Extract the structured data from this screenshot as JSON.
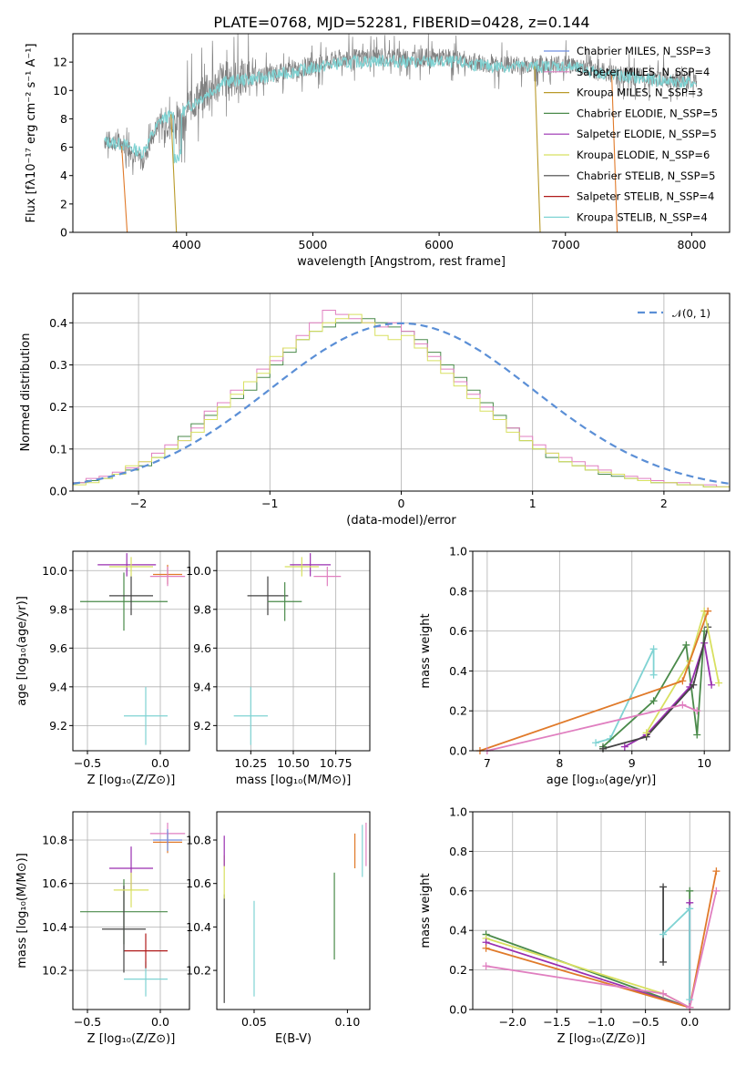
{
  "figure": {
    "title": "PLATE=0768, MJD=52281, FIBERID=0428, z=0.144",
    "colors": [
      "#6f8fe0",
      "#e07fc0",
      "#b99a2a",
      "#4a8a4a",
      "#9a2fb0",
      "#d8e060",
      "#444444",
      "#b01a1a",
      "#7fd3d3",
      "#e07a2a",
      "#808080"
    ]
  },
  "chart_data": [
    {
      "type": "line",
      "panel": "spectrum",
      "xlabel": "wavelength [Angstrom, rest frame]",
      "ylabel": "Flux [fλ10⁻¹⁷ erg cm⁻² s⁻¹ A⁻¹]",
      "xlim": [
        3100,
        8300
      ],
      "ylim": [
        0,
        14
      ],
      "xticks": [
        4000,
        5000,
        6000,
        7000,
        8000
      ],
      "yticks": [
        0,
        2,
        4,
        6,
        8,
        10,
        12
      ],
      "legend": {
        "placement": "top-right",
        "entries": [
          {
            "text": "Chabrier MILES, N_SSP=3",
            "color": "#6f8fe0"
          },
          {
            "text": "Salpeter MILES, N_SSP=4",
            "color": "#e07fc0"
          },
          {
            "text": "Kroupa MILES, N_SSP=3",
            "color": "#b99a2a"
          },
          {
            "text": "Chabrier ELODIE, N_SSP=5",
            "color": "#4a8a4a"
          },
          {
            "text": "Salpeter ELODIE, N_SSP=5",
            "color": "#9a2fb0"
          },
          {
            "text": "Kroupa ELODIE, N_SSP=6",
            "color": "#d8e060"
          },
          {
            "text": "Chabrier STELIB, N_SSP=5",
            "color": "#444444"
          },
          {
            "text": "Salpeter STELIB, N_SSP=4",
            "color": "#b01a1a"
          },
          {
            "text": "Kroupa STELIB, N_SSP=4",
            "color": "#7fd3d3"
          }
        ]
      },
      "data_spectrum": {
        "color": "#808080",
        "points": [
          [
            3350,
            6.5
          ],
          [
            3500,
            6.3
          ],
          [
            3650,
            5.0
          ],
          [
            3800,
            8.2
          ],
          [
            3950,
            8.6
          ],
          [
            4100,
            9.5
          ],
          [
            4300,
            10.8
          ],
          [
            4600,
            11.0
          ],
          [
            4900,
            11.5
          ],
          [
            5200,
            12.2
          ],
          [
            5500,
            12.4
          ],
          [
            5800,
            12.3
          ],
          [
            6100,
            12.3
          ],
          [
            6400,
            11.8
          ],
          [
            6700,
            11.8
          ],
          [
            7000,
            11.9
          ],
          [
            7300,
            11.3
          ],
          [
            7600,
            10.9
          ],
          [
            7900,
            10.8
          ],
          [
            8040,
            10.6
          ]
        ]
      },
      "model_spectrum": {
        "color": "#7fd3d3",
        "points": [
          [
            3350,
            6.4
          ],
          [
            3500,
            6.2
          ],
          [
            3650,
            5.6
          ],
          [
            3800,
            8.0
          ],
          [
            3950,
            8.4
          ],
          [
            4100,
            9.4
          ],
          [
            4300,
            10.6
          ],
          [
            4600,
            10.9
          ],
          [
            4900,
            11.4
          ],
          [
            5200,
            11.9
          ],
          [
            5500,
            12.1
          ],
          [
            5800,
            12.0
          ],
          [
            6100,
            12.0
          ],
          [
            6400,
            11.7
          ],
          [
            6700,
            11.7
          ],
          [
            7000,
            11.7
          ],
          [
            7300,
            11.2
          ],
          [
            7600,
            10.8
          ],
          [
            7900,
            10.6
          ],
          [
            8040,
            10.5
          ]
        ]
      },
      "dropouts": [
        {
          "x": 3530,
          "color": "#e07a2a"
        },
        {
          "x": 3920,
          "color": "#b99a2a"
        },
        {
          "x": 6800,
          "color": "#b99a2a"
        },
        {
          "x": 7410,
          "color": "#e07a2a"
        }
      ]
    },
    {
      "type": "line",
      "panel": "residuals",
      "xlabel": "(data-model)/error",
      "ylabel": "Normed distribution",
      "xlim": [
        -2.5,
        2.5
      ],
      "ylim": [
        0,
        0.47
      ],
      "xticks": [
        -2,
        -1,
        0,
        1,
        2
      ],
      "yticks": [
        0.0,
        0.1,
        0.2,
        0.3,
        0.4
      ],
      "grid": true,
      "legend": {
        "placement": "top-right",
        "entries": [
          {
            "text": "𝒩(0, 1)",
            "color": "#5b8fd6"
          }
        ]
      },
      "bin_width": 0.1,
      "reference_curve": {
        "name": "𝒩(0, 1)",
        "mu": 0,
        "sigma": 1,
        "color": "#5b8fd6",
        "style": "dashed"
      },
      "histograms": [
        {
          "color": "#4a8a4a",
          "values": [
            0.02,
            0.025,
            0.03,
            0.04,
            0.05,
            0.06,
            0.08,
            0.1,
            0.13,
            0.16,
            0.18,
            0.2,
            0.22,
            0.24,
            0.27,
            0.3,
            0.33,
            0.36,
            0.38,
            0.39,
            0.4,
            0.4,
            0.41,
            0.4,
            0.39,
            0.38,
            0.36,
            0.33,
            0.3,
            0.27,
            0.24,
            0.21,
            0.18,
            0.15,
            0.12,
            0.1,
            0.08,
            0.07,
            0.06,
            0.05,
            0.04,
            0.035,
            0.03,
            0.025,
            0.02,
            0.02,
            0.015,
            0.015,
            0.01,
            0.01
          ]
        },
        {
          "color": "#e07fc0",
          "values": [
            0.02,
            0.03,
            0.035,
            0.045,
            0.055,
            0.07,
            0.09,
            0.11,
            0.12,
            0.15,
            0.19,
            0.21,
            0.24,
            0.26,
            0.29,
            0.31,
            0.34,
            0.37,
            0.4,
            0.43,
            0.42,
            0.41,
            0.4,
            0.39,
            0.4,
            0.38,
            0.35,
            0.32,
            0.29,
            0.26,
            0.23,
            0.2,
            0.17,
            0.15,
            0.13,
            0.11,
            0.09,
            0.08,
            0.07,
            0.06,
            0.05,
            0.04,
            0.035,
            0.03,
            0.025,
            0.02,
            0.02,
            0.015,
            0.015,
            0.01
          ]
        },
        {
          "color": "#d8e060",
          "values": [
            0.015,
            0.02,
            0.03,
            0.04,
            0.06,
            0.07,
            0.08,
            0.1,
            0.12,
            0.14,
            0.17,
            0.2,
            0.23,
            0.26,
            0.28,
            0.32,
            0.34,
            0.36,
            0.38,
            0.4,
            0.41,
            0.42,
            0.4,
            0.37,
            0.36,
            0.37,
            0.34,
            0.31,
            0.28,
            0.25,
            0.22,
            0.19,
            0.17,
            0.14,
            0.12,
            0.1,
            0.09,
            0.07,
            0.06,
            0.05,
            0.045,
            0.04,
            0.03,
            0.025,
            0.02,
            0.02,
            0.015,
            0.015,
            0.01,
            0.01
          ]
        }
      ]
    },
    {
      "type": "scatter",
      "panel": "age-vs-Z",
      "xlabel": "Z [log₁₀(Z/Z⊙)]",
      "ylabel": "age  [log₁₀(age/yr)]",
      "xlim": [
        -0.6,
        0.2
      ],
      "ylim": [
        9.07,
        10.1
      ],
      "xticks": [
        -0.5,
        0.0
      ],
      "yticks": [
        9.2,
        9.4,
        9.6,
        9.8,
        10.0
      ],
      "grid": true,
      "points": [
        {
          "x": -0.1,
          "y": 9.25,
          "xerr": 0.15,
          "yerr": 0.15,
          "color": "#7fd3d3"
        },
        {
          "x": -0.25,
          "y": 9.84,
          "xerr": 0.3,
          "yerr": 0.15,
          "color": "#4a8a4a"
        },
        {
          "x": -0.23,
          "y": 10.03,
          "xerr": 0.2,
          "yerr": 0.06,
          "color": "#9a2fb0"
        },
        {
          "x": -0.2,
          "y": 10.02,
          "xerr": 0.15,
          "yerr": 0.05,
          "color": "#d8e060"
        },
        {
          "x": -0.2,
          "y": 9.87,
          "xerr": 0.15,
          "yerr": 0.1,
          "color": "#444444"
        },
        {
          "x": 0.05,
          "y": 9.98,
          "xerr": 0.1,
          "yerr": 0.05,
          "color": "#e07a2a"
        },
        {
          "x": 0.05,
          "y": 9.97,
          "xerr": 0.12,
          "yerr": 0.05,
          "color": "#e07fc0"
        }
      ]
    },
    {
      "type": "scatter",
      "panel": "age-vs-mass",
      "xlabel": "mass [log₁₀(M/M⊙)]",
      "ylabel": "",
      "xlim": [
        10.05,
        10.95
      ],
      "ylim": [
        9.07,
        10.1
      ],
      "xticks": [
        10.25,
        10.5,
        10.75
      ],
      "xticklabels": [
        "10.25",
        "10.50",
        "10.75"
      ],
      "yticks": [
        9.2,
        9.4,
        9.6,
        9.8,
        10.0
      ],
      "grid": true,
      "points": [
        {
          "x": 10.25,
          "y": 9.25,
          "xerr": 0.1,
          "yerr": 0.15,
          "color": "#7fd3d3"
        },
        {
          "x": 10.35,
          "y": 9.87,
          "xerr": 0.12,
          "yerr": 0.1,
          "color": "#444444"
        },
        {
          "x": 10.45,
          "y": 9.84,
          "xerr": 0.1,
          "yerr": 0.1,
          "color": "#4a8a4a"
        },
        {
          "x": 10.6,
          "y": 10.03,
          "xerr": 0.12,
          "yerr": 0.06,
          "color": "#9a2fb0"
        },
        {
          "x": 10.7,
          "y": 9.97,
          "xerr": 0.08,
          "yerr": 0.05,
          "color": "#e07fc0"
        },
        {
          "x": 10.55,
          "y": 10.02,
          "xerr": 0.1,
          "yerr": 0.05,
          "color": "#d8e060"
        }
      ]
    },
    {
      "type": "line",
      "panel": "weight-vs-age",
      "xlabel": "age  [log₁₀(age/yr)]",
      "ylabel": "mass weight",
      "xlim": [
        6.8,
        10.35
      ],
      "ylim": [
        0,
        1
      ],
      "xticks": [
        7,
        8,
        9,
        10
      ],
      "yticks": [
        0.0,
        0.2,
        0.4,
        0.6,
        0.8,
        1.0
      ],
      "grid": true,
      "series": [
        {
          "color": "#7fd3d3",
          "points": [
            [
              8.5,
              0.04
            ],
            [
              8.7,
              0.06
            ],
            [
              9.3,
              0.51
            ],
            [
              9.3,
              0.38
            ]
          ]
        },
        {
          "color": "#4a8a4a",
          "points": [
            [
              8.6,
              0.02
            ],
            [
              9.3,
              0.25
            ],
            [
              9.75,
              0.53
            ],
            [
              9.9,
              0.08
            ],
            [
              10.0,
              0.6
            ]
          ]
        },
        {
          "color": "#9a2fb0",
          "points": [
            [
              8.9,
              0.02
            ],
            [
              9.2,
              0.08
            ],
            [
              9.8,
              0.32
            ],
            [
              10.0,
              0.54
            ],
            [
              10.1,
              0.33
            ]
          ]
        },
        {
          "color": "#444444",
          "points": [
            [
              8.6,
              0.01
            ],
            [
              9.2,
              0.07
            ],
            [
              9.85,
              0.33
            ],
            [
              10.05,
              0.62
            ]
          ]
        },
        {
          "color": "#d8e060",
          "points": [
            [
              9.2,
              0.09
            ],
            [
              9.8,
              0.45
            ],
            [
              10.0,
              0.7
            ],
            [
              10.2,
              0.34
            ]
          ]
        },
        {
          "color": "#e07a2a",
          "points": [
            [
              6.9,
              0.0
            ],
            [
              9.7,
              0.35
            ],
            [
              10.05,
              0.7
            ]
          ]
        },
        {
          "color": "#e07fc0",
          "points": [
            [
              7.0,
              0.0
            ],
            [
              9.7,
              0.23
            ],
            [
              9.9,
              0.2
            ]
          ]
        }
      ]
    },
    {
      "type": "scatter",
      "panel": "mass-vs-Z",
      "xlabel": "Z [log₁₀(Z/Z⊙)]",
      "ylabel": "mass [log₁₀(M/M⊙)]",
      "xlim": [
        -0.6,
        0.2
      ],
      "ylim": [
        10.02,
        10.93
      ],
      "xticks": [
        -0.5,
        0.0
      ],
      "yticks": [
        10.2,
        10.4,
        10.6,
        10.8
      ],
      "grid": true,
      "points": [
        {
          "x": -0.1,
          "y": 10.16,
          "xerr": 0.15,
          "yerr": 0.08,
          "color": "#7fd3d3"
        },
        {
          "x": -0.1,
          "y": 10.29,
          "xerr": 0.15,
          "yerr": 0.08,
          "color": "#b01a1a"
        },
        {
          "x": -0.25,
          "y": 10.47,
          "xerr": 0.3,
          "yerr": 0.15,
          "color": "#4a8a4a"
        },
        {
          "x": -0.25,
          "y": 10.39,
          "xerr": 0.15,
          "yerr": 0.2,
          "color": "#444444"
        },
        {
          "x": -0.2,
          "y": 10.67,
          "xerr": 0.15,
          "yerr": 0.1,
          "color": "#9a2fb0"
        },
        {
          "x": -0.2,
          "y": 10.57,
          "xerr": 0.12,
          "yerr": 0.08,
          "color": "#d8e060"
        },
        {
          "x": 0.05,
          "y": 10.79,
          "xerr": 0.1,
          "yerr": 0.05,
          "color": "#e07a2a"
        },
        {
          "x": 0.05,
          "y": 10.83,
          "xerr": 0.12,
          "yerr": 0.05,
          "color": "#e07fc0"
        },
        {
          "x": 0.05,
          "y": 10.8,
          "xerr": 0.1,
          "yerr": 0.05,
          "color": "#6f8fe0"
        }
      ]
    },
    {
      "type": "scatter",
      "panel": "mass-vs-EBV",
      "xlabel": "E(B-V)",
      "ylabel": "",
      "xlim": [
        0.03,
        0.112
      ],
      "ylim": [
        10.02,
        10.93
      ],
      "xticks": [
        0.05,
        0.1
      ],
      "xticklabels": [
        "0.05",
        "0.10"
      ],
      "yticks": [
        10.2,
        10.4,
        10.6,
        10.8
      ],
      "points": [
        {
          "x": 0.034,
          "y": 10.3,
          "yerr": 0.25,
          "color": "#444444"
        },
        {
          "x": 0.034,
          "y": 10.63,
          "yerr": 0.1,
          "color": "#d8e060"
        },
        {
          "x": 0.034,
          "y": 10.75,
          "yerr": 0.07,
          "color": "#9a2fb0"
        },
        {
          "x": 0.05,
          "y": 10.3,
          "yerr": 0.22,
          "color": "#7fd3d3"
        },
        {
          "x": 0.093,
          "y": 10.45,
          "yerr": 0.2,
          "color": "#4a8a4a"
        },
        {
          "x": 0.104,
          "y": 10.75,
          "yerr": 0.08,
          "color": "#e07a2a"
        },
        {
          "x": 0.108,
          "y": 10.75,
          "yerr": 0.12,
          "color": "#7fd3d3"
        },
        {
          "x": 0.11,
          "y": 10.78,
          "yerr": 0.1,
          "color": "#e07fc0"
        }
      ]
    },
    {
      "type": "line",
      "panel": "weight-vs-Z",
      "xlabel": "Z [log₁₀(Z/Z⊙)]",
      "ylabel": "mass weight",
      "xlim": [
        -2.45,
        0.45
      ],
      "ylim": [
        0,
        1
      ],
      "xticks": [
        -2.0,
        -1.5,
        -1.0,
        -0.5,
        0.0
      ],
      "yticks": [
        0.0,
        0.2,
        0.4,
        0.6,
        0.8,
        1.0
      ],
      "grid": true,
      "series": [
        {
          "color": "#4a8a4a",
          "points": [
            [
              -2.3,
              0.38
            ],
            [
              0.0,
              0.01
            ],
            [
              0.0,
              0.6
            ]
          ]
        },
        {
          "color": "#d8e060",
          "points": [
            [
              -2.3,
              0.36
            ],
            [
              -0.3,
              0.08
            ],
            [
              0.0,
              0.01
            ]
          ]
        },
        {
          "color": "#9a2fb0",
          "points": [
            [
              -2.3,
              0.34
            ],
            [
              0.0,
              0.01
            ],
            [
              0.0,
              0.54
            ]
          ]
        },
        {
          "color": "#e07a2a",
          "points": [
            [
              -2.3,
              0.31
            ],
            [
              0.0,
              0.01
            ],
            [
              0.3,
              0.7
            ]
          ]
        },
        {
          "color": "#e07fc0",
          "points": [
            [
              -2.3,
              0.22
            ],
            [
              -0.3,
              0.08
            ],
            [
              0.0,
              0.01
            ],
            [
              0.3,
              0.6
            ]
          ]
        },
        {
          "color": "#444444",
          "points": [
            [
              -0.3,
              0.62
            ],
            [
              -0.3,
              0.24
            ]
          ]
        },
        {
          "color": "#7fd3d3",
          "points": [
            [
              -0.3,
              0.38
            ],
            [
              0.0,
              0.51
            ],
            [
              0.0,
              0.05
            ]
          ]
        }
      ]
    }
  ]
}
